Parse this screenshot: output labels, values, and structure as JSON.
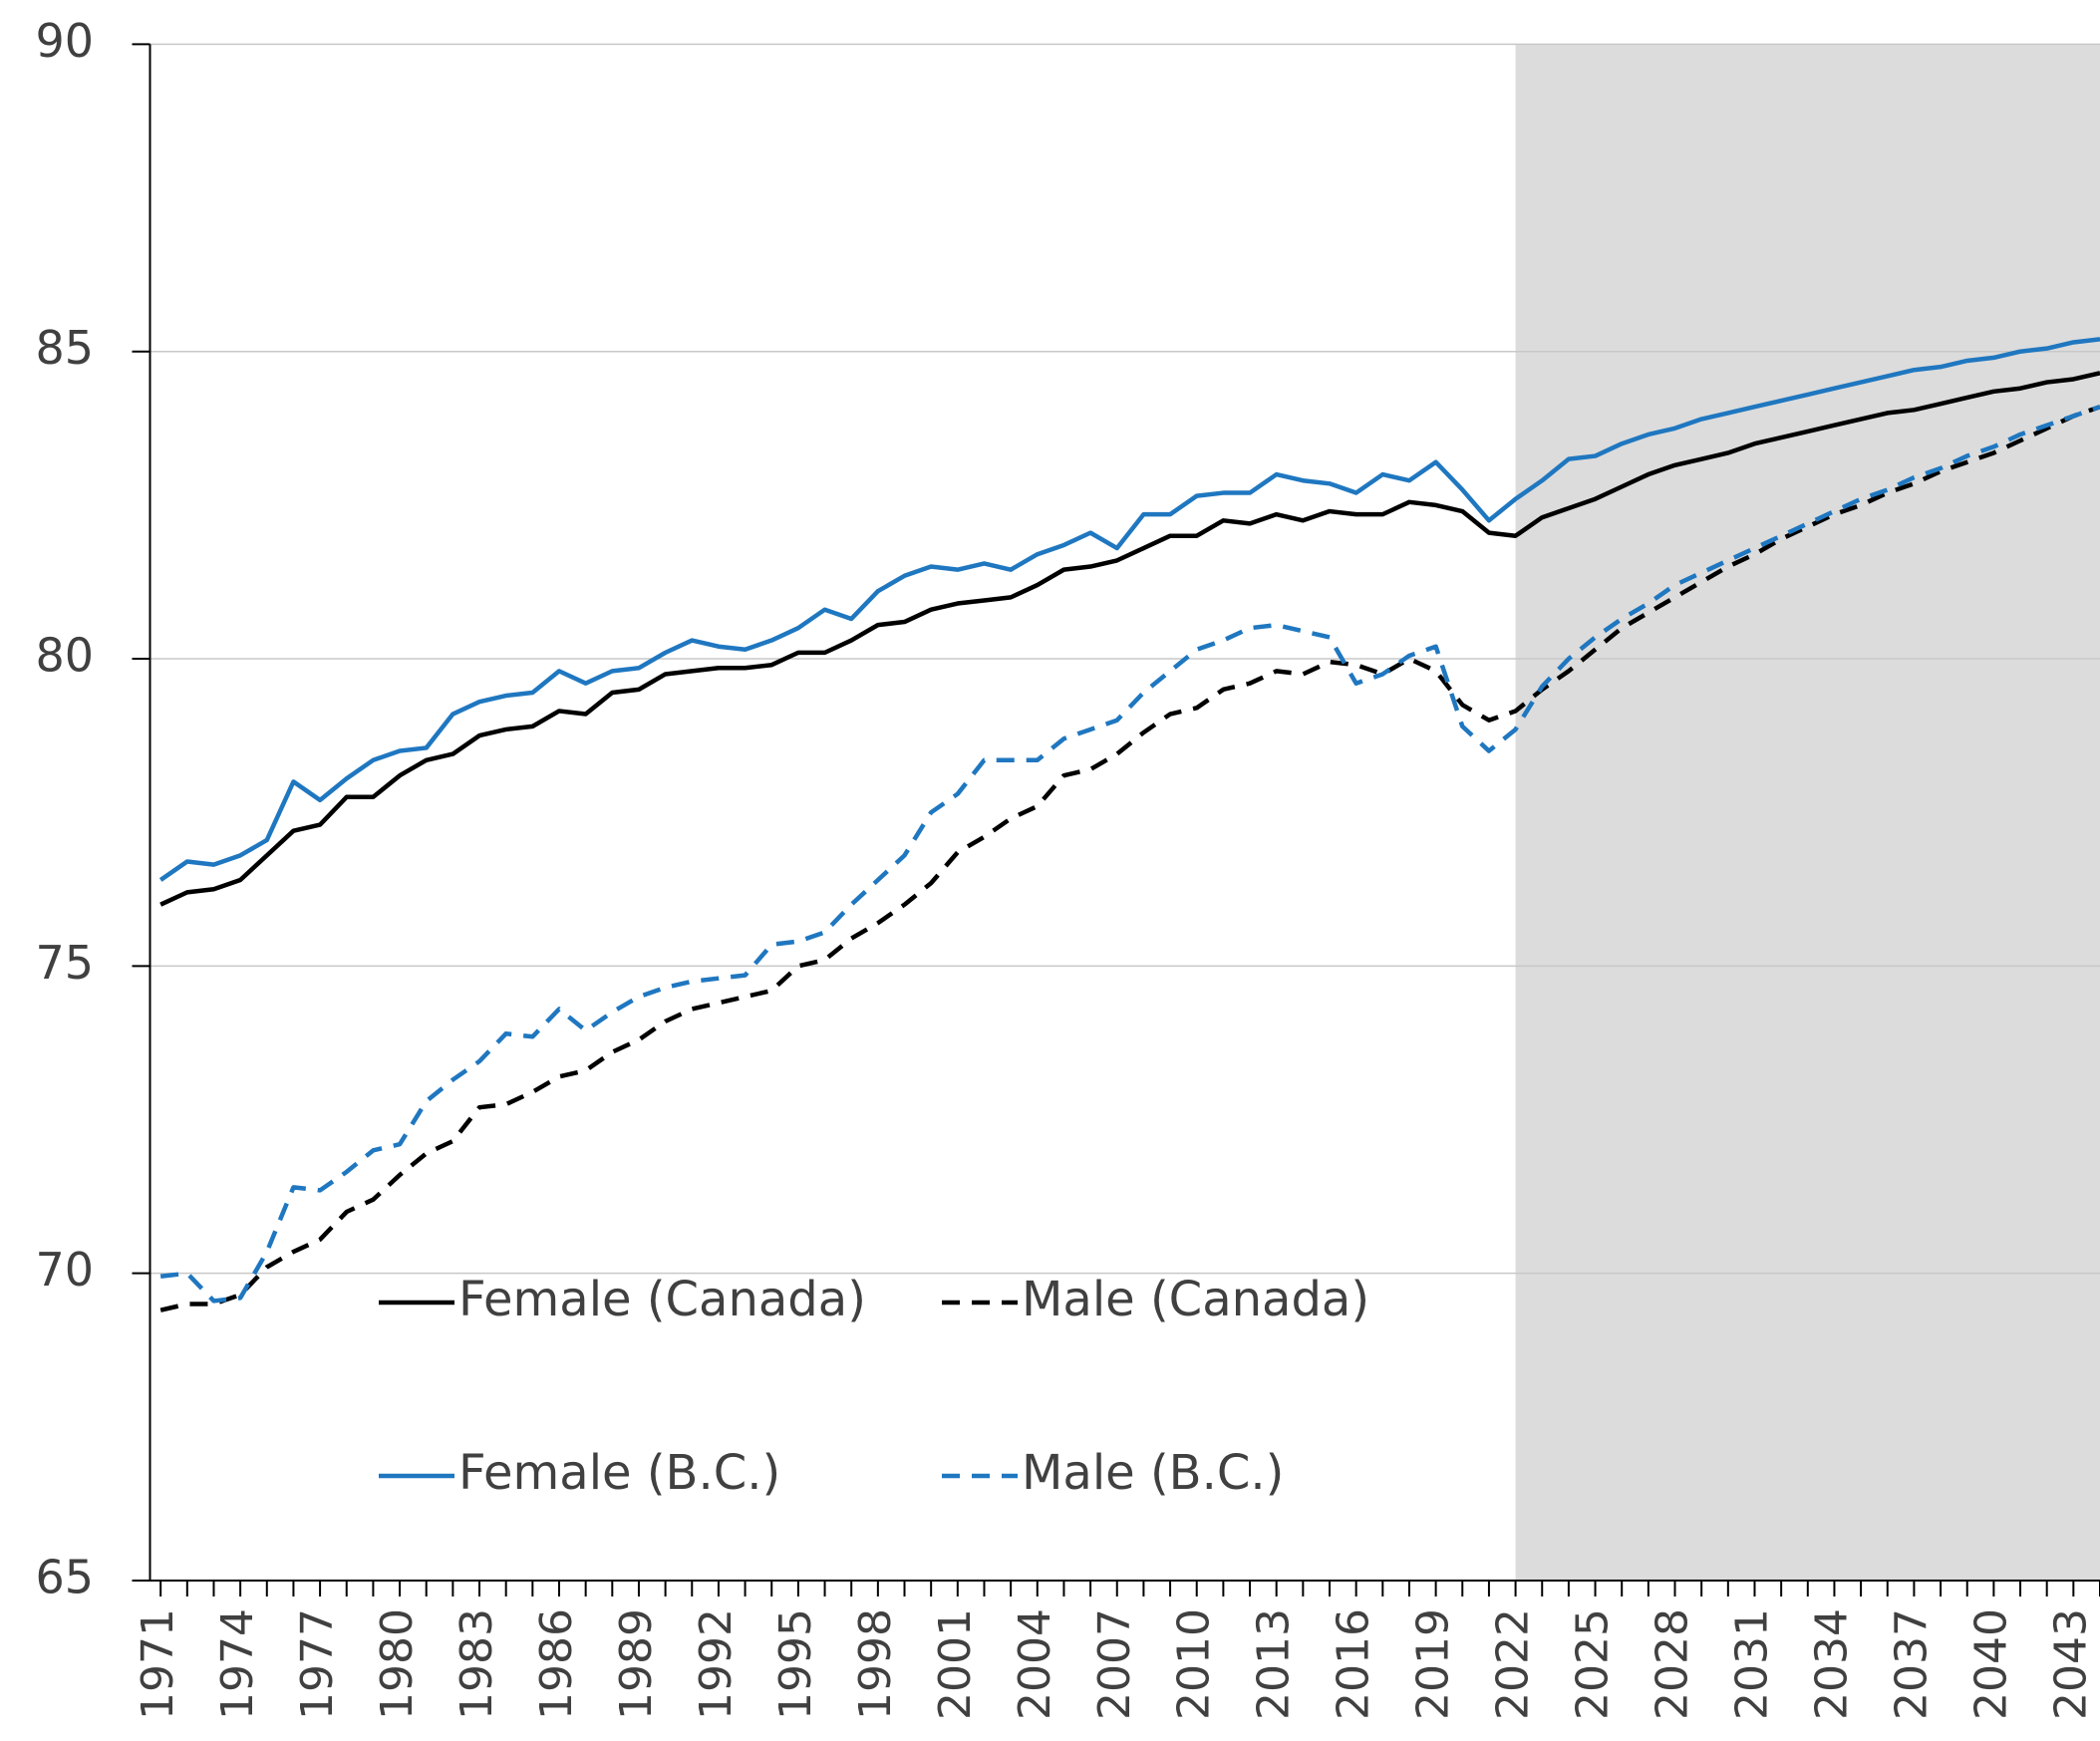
{
  "chart_data": {
    "type": "line",
    "x": [
      1971,
      1972,
      1973,
      1974,
      1975,
      1976,
      1977,
      1978,
      1979,
      1980,
      1981,
      1982,
      1983,
      1984,
      1985,
      1986,
      1987,
      1988,
      1989,
      1990,
      1991,
      1992,
      1993,
      1994,
      1995,
      1996,
      1997,
      1998,
      1999,
      2000,
      2001,
      2002,
      2003,
      2004,
      2005,
      2006,
      2007,
      2008,
      2009,
      2010,
      2011,
      2012,
      2013,
      2014,
      2015,
      2016,
      2017,
      2018,
      2019,
      2020,
      2021,
      2022,
      2023,
      2024,
      2025,
      2026,
      2027,
      2028,
      2029,
      2030,
      2031,
      2032,
      2033,
      2034,
      2035,
      2036,
      2037,
      2038,
      2039,
      2040,
      2041,
      2042,
      2043,
      2044
    ],
    "series": [
      {
        "name": "Female (Canada)",
        "color": "#000000",
        "dash": false,
        "values": [
          76.0,
          76.2,
          76.25,
          76.4,
          76.8,
          77.2,
          77.3,
          77.75,
          77.75,
          78.1,
          78.35,
          78.45,
          78.75,
          78.85,
          78.9,
          79.15,
          79.1,
          79.45,
          79.5,
          79.75,
          79.8,
          79.85,
          79.85,
          79.9,
          80.1,
          80.1,
          80.3,
          80.55,
          80.6,
          80.8,
          80.9,
          80.95,
          81.0,
          81.2,
          81.45,
          81.5,
          81.6,
          81.8,
          82.0,
          82.0,
          82.25,
          82.2,
          82.35,
          82.25,
          82.4,
          82.35,
          82.35,
          82.55,
          82.5,
          82.4,
          82.05,
          82.0,
          82.3,
          82.45,
          82.6,
          82.8,
          83.0,
          83.15,
          83.25,
          83.35,
          83.5,
          83.6,
          83.7,
          83.8,
          83.9,
          84.0,
          84.05,
          84.15,
          84.25,
          84.35,
          84.4,
          84.5,
          84.55,
          84.65
        ]
      },
      {
        "name": "Male (Canada)",
        "color": "#000000",
        "dash": true,
        "values": [
          69.4,
          69.5,
          69.5,
          69.65,
          70.1,
          70.35,
          70.55,
          71.0,
          71.2,
          71.6,
          71.95,
          72.15,
          72.7,
          72.75,
          72.95,
          73.2,
          73.3,
          73.6,
          73.8,
          74.1,
          74.3,
          74.4,
          74.5,
          74.6,
          75.0,
          75.1,
          75.45,
          75.7,
          76.0,
          76.35,
          76.85,
          77.1,
          77.4,
          77.6,
          78.1,
          78.2,
          78.45,
          78.8,
          79.1,
          79.2,
          79.5,
          79.6,
          79.8,
          79.75,
          79.95,
          79.9,
          79.75,
          80.0,
          79.8,
          79.25,
          79.0,
          79.15,
          79.5,
          79.8,
          80.15,
          80.5,
          80.75,
          81.0,
          81.25,
          81.5,
          81.7,
          81.95,
          82.15,
          82.35,
          82.5,
          82.7,
          82.85,
          83.05,
          83.2,
          83.35,
          83.55,
          83.75,
          83.95,
          84.1
        ]
      },
      {
        "name": "Female (B.C.)",
        "color": "#1f77c0",
        "dash": false,
        "values": [
          76.4,
          76.7,
          76.65,
          76.8,
          77.05,
          78.0,
          77.7,
          78.05,
          78.35,
          78.5,
          78.55,
          79.1,
          79.3,
          79.4,
          79.45,
          79.8,
          79.6,
          79.8,
          79.85,
          80.1,
          80.3,
          80.2,
          80.15,
          80.3,
          80.5,
          80.8,
          80.65,
          81.1,
          81.35,
          81.5,
          81.45,
          81.55,
          81.45,
          81.7,
          81.85,
          82.05,
          81.8,
          82.35,
          82.35,
          82.65,
          82.7,
          82.7,
          83.0,
          82.9,
          82.85,
          82.7,
          83.0,
          82.9,
          83.2,
          82.75,
          82.25,
          82.6,
          82.9,
          83.25,
          83.3,
          83.5,
          83.65,
          83.75,
          83.9,
          84.0,
          84.1,
          84.2,
          84.3,
          84.4,
          84.5,
          84.6,
          84.7,
          84.75,
          84.85,
          84.9,
          85.0,
          85.05,
          85.15,
          85.2
        ]
      },
      {
        "name": "Male (B.C.)",
        "color": "#1f77c0",
        "dash": true,
        "values": [
          69.95,
          70.0,
          69.55,
          69.6,
          70.35,
          71.4,
          71.35,
          71.65,
          72.0,
          72.1,
          72.8,
          73.15,
          73.45,
          73.9,
          73.85,
          74.3,
          73.95,
          74.25,
          74.5,
          74.65,
          74.75,
          74.8,
          74.85,
          75.35,
          75.4,
          75.55,
          76.0,
          76.4,
          76.8,
          77.5,
          77.8,
          78.35,
          78.35,
          78.35,
          78.7,
          78.85,
          79.0,
          79.45,
          79.8,
          80.15,
          80.3,
          80.5,
          80.55,
          80.45,
          80.35,
          79.6,
          79.75,
          80.05,
          80.2,
          78.9,
          78.5,
          78.85,
          79.55,
          80.0,
          80.35,
          80.65,
          80.9,
          81.2,
          81.4,
          81.6,
          81.8,
          82.0,
          82.2,
          82.4,
          82.6,
          82.75,
          82.95,
          83.1,
          83.3,
          83.45,
          83.65,
          83.8,
          83.95,
          84.1
        ]
      }
    ],
    "xlim": [
      1970.6,
      2044
    ],
    "xticks": [
      1971,
      1974,
      1977,
      1980,
      1983,
      1986,
      1989,
      1992,
      1995,
      1998,
      2001,
      2004,
      2007,
      2010,
      2013,
      2016,
      2019,
      2022,
      2025,
      2028,
      2031,
      2034,
      2037,
      2040,
      2043
    ],
    "ylim": [
      65,
      90
    ],
    "yticks": [
      65,
      70,
      75,
      80,
      85,
      90
    ],
    "grid": true,
    "shade_from": 2022,
    "shade_color": "#dcdcdc",
    "legend": "lower left"
  }
}
